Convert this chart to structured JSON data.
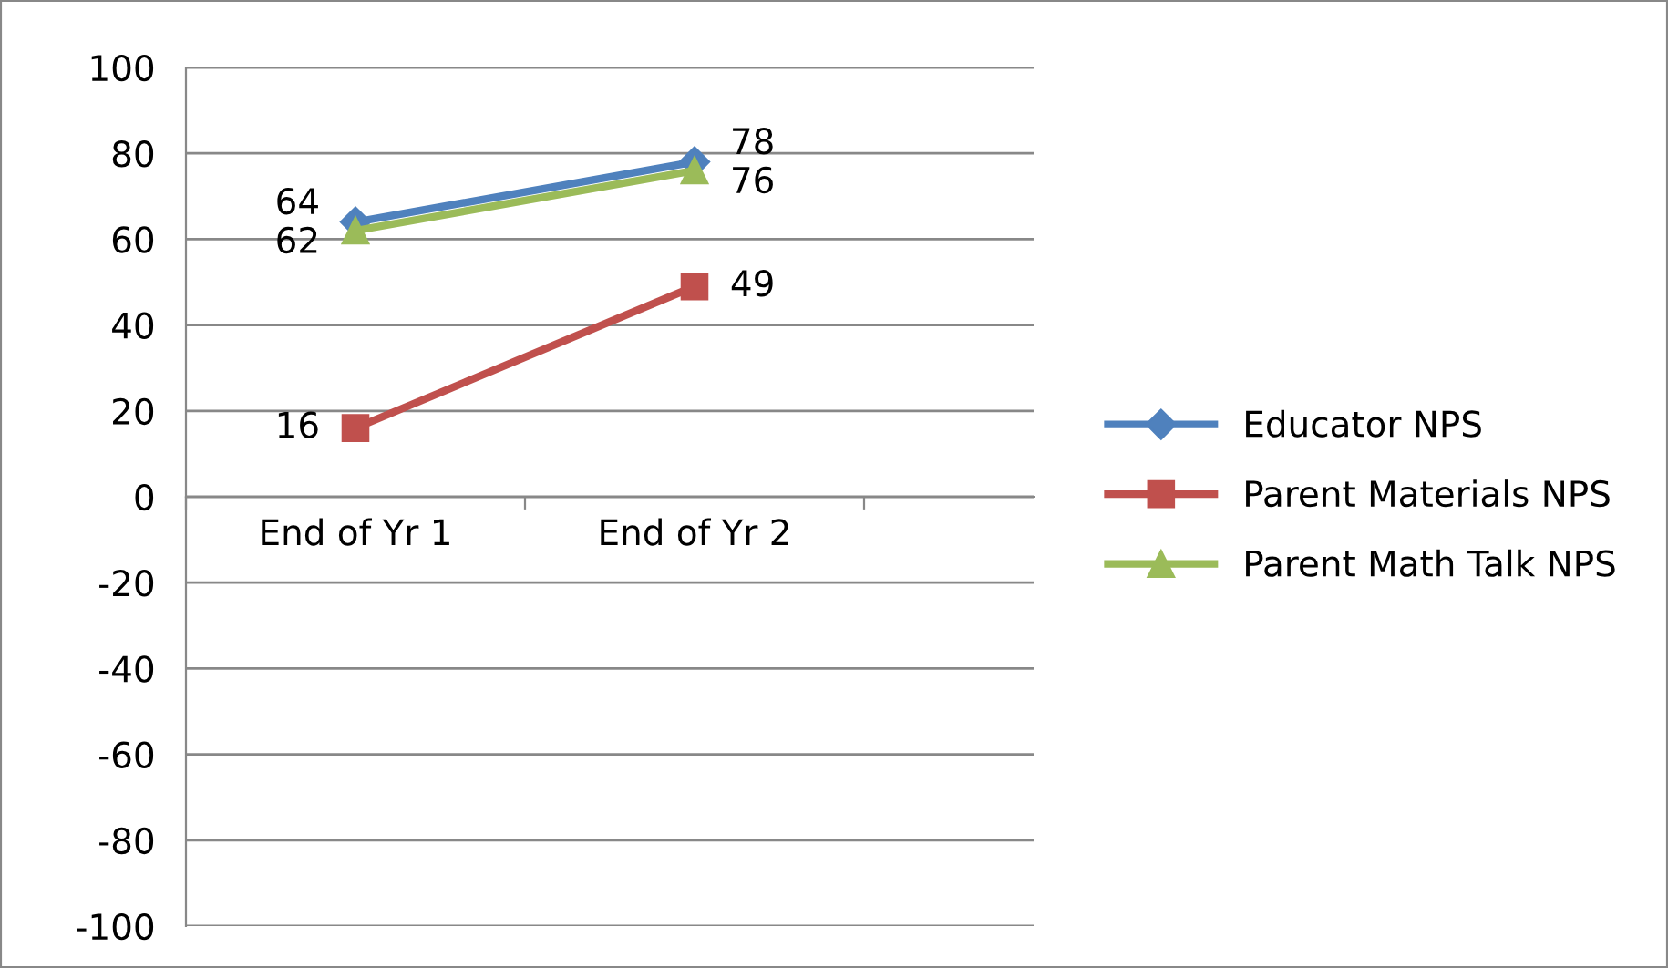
{
  "chart_data": {
    "type": "line",
    "categories": [
      "End of Yr 1",
      "End of Yr 2"
    ],
    "series": [
      {
        "name": "Educator NPS",
        "color": "#4f81bd",
        "values": [
          64,
          78
        ],
        "marker": "diamond"
      },
      {
        "name": "Parent Materials NPS",
        "color": "#c0504d",
        "values": [
          16,
          49
        ],
        "marker": "square"
      },
      {
        "name": "Parent Math Talk NPS",
        "color": "#9bbb59",
        "values": [
          62,
          76
        ],
        "marker": "triangle"
      }
    ],
    "ylim": [
      -100,
      100
    ],
    "yticks": [
      -100,
      -80,
      -60,
      -40,
      -20,
      0,
      20,
      40,
      60,
      80,
      100
    ],
    "grid": "y",
    "legend": "right",
    "data_labels": true
  }
}
